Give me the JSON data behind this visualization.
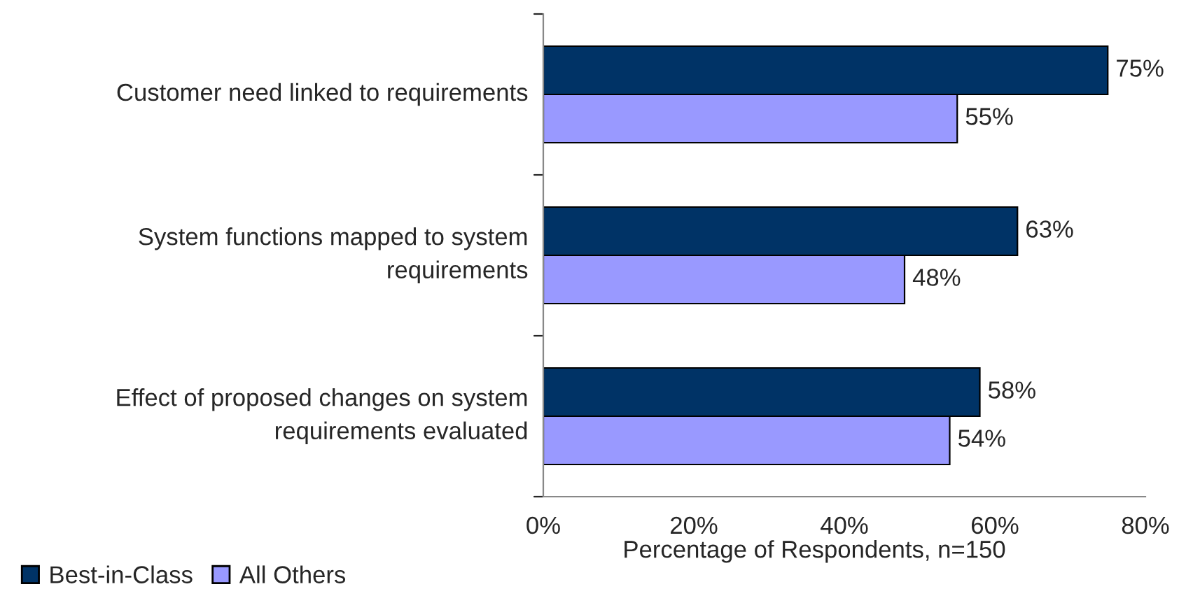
{
  "chart_data": {
    "type": "bar",
    "orientation": "horizontal",
    "xlabel": "Percentage of Respondents, n=150",
    "categories": [
      "Customer need linked to requirements",
      "System functions mapped to system requirements",
      "Effect of proposed changes on system requirements evaluated"
    ],
    "series": [
      {
        "name": "Best-in-Class",
        "color": "#003366",
        "values": [
          75,
          63,
          58
        ],
        "value_labels": [
          "75%",
          "63%",
          "58%"
        ]
      },
      {
        "name": "All Others",
        "color": "#9999ff",
        "values": [
          55,
          48,
          54
        ],
        "value_labels": [
          "55%",
          "48%",
          "54%"
        ]
      }
    ],
    "xlim": [
      0,
      80
    ],
    "xticks": [
      {
        "value": 0,
        "label": "0%"
      },
      {
        "value": 20,
        "label": "20%"
      },
      {
        "value": 40,
        "label": "40%"
      },
      {
        "value": 60,
        "label": "60%"
      },
      {
        "value": 80,
        "label": "80%"
      }
    ],
    "grid": false,
    "legend": "bottom left"
  }
}
